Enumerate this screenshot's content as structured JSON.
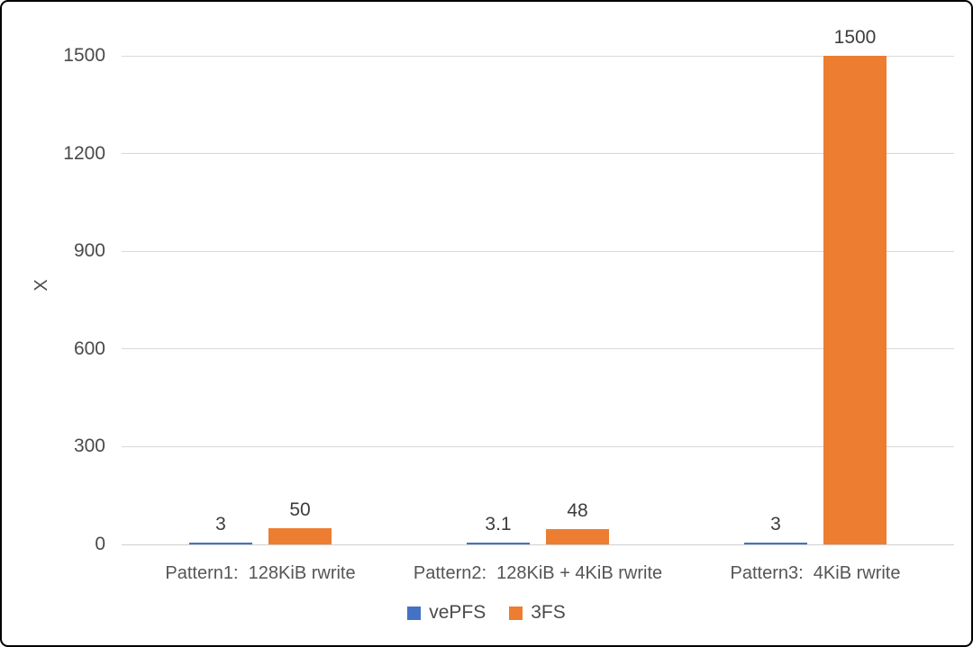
{
  "frame": {
    "background_color": "#ffffff",
    "border_color": "#000000"
  },
  "chart_data": {
    "type": "bar",
    "title": "",
    "xlabel": "",
    "ylabel": "X",
    "categories": [
      "Pattern1:  128KiB rwrite",
      "Pattern2:  128KiB + 4KiB rwrite",
      "Pattern3:  4KiB rwrite"
    ],
    "series": [
      {
        "name": "vePFS",
        "color": "#4472C4",
        "values": [
          3,
          3.1,
          3
        ],
        "labels": [
          "3",
          "3.1",
          "3"
        ]
      },
      {
        "name": "3FS",
        "color": "#ED7D31",
        "values": [
          50,
          48,
          1500
        ],
        "labels": [
          "50",
          "48",
          "1500"
        ]
      }
    ],
    "yticks": [
      0,
      300,
      600,
      900,
      1200,
      1500
    ],
    "ylim": [
      0,
      1500
    ],
    "grid": true,
    "gridline_color": "#d9d9d9",
    "legend_position": "bottom",
    "data_labels_shown": true
  }
}
